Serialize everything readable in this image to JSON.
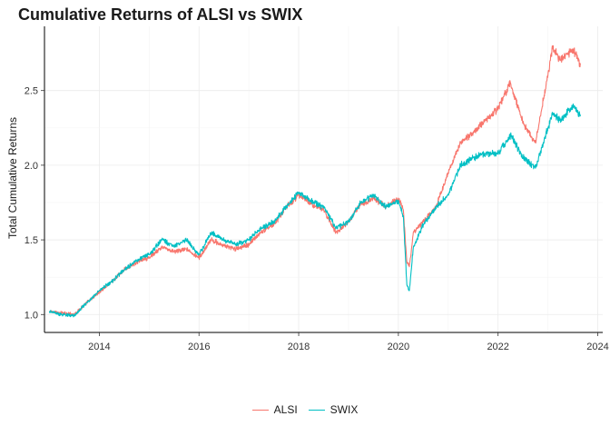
{
  "chart_data": {
    "type": "line",
    "title": "Cumulative Returns of ALSI vs SWIX",
    "xlabel": "",
    "ylabel": "Total Cumulative Returns",
    "xlim": [
      2012.9,
      2024.1
    ],
    "ylim": [
      0.88,
      2.93
    ],
    "x_ticks": [
      2014,
      2016,
      2018,
      2020,
      2022,
      2024
    ],
    "x_tick_labels": [
      "2014",
      "2016",
      "2018",
      "2020",
      "2022",
      "2024"
    ],
    "y_ticks": [
      1.0,
      1.5,
      2.0,
      2.5
    ],
    "y_tick_labels": [
      "1.0",
      "1.5",
      "2.0",
      "2.5"
    ],
    "grid": true,
    "legend_position": "bottom",
    "series": [
      {
        "name": "ALSI",
        "color": "#F8766D",
        "x": [
          2013.0,
          2013.25,
          2013.5,
          2013.75,
          2014.0,
          2014.25,
          2014.5,
          2014.75,
          2015.0,
          2015.25,
          2015.5,
          2015.75,
          2016.0,
          2016.25,
          2016.5,
          2016.75,
          2017.0,
          2017.25,
          2017.5,
          2017.75,
          2018.0,
          2018.25,
          2018.5,
          2018.75,
          2019.0,
          2019.25,
          2019.5,
          2019.75,
          2020.0,
          2020.1,
          2020.17,
          2020.22,
          2020.3,
          2020.5,
          2020.75,
          2021.0,
          2021.25,
          2021.5,
          2021.75,
          2022.0,
          2022.25,
          2022.5,
          2022.75,
          2023.0,
          2023.1,
          2023.25,
          2023.5,
          2023.65
        ],
        "values": [
          1.02,
          1.01,
          1.0,
          1.08,
          1.15,
          1.22,
          1.3,
          1.35,
          1.38,
          1.45,
          1.42,
          1.44,
          1.38,
          1.5,
          1.46,
          1.44,
          1.47,
          1.55,
          1.6,
          1.72,
          1.8,
          1.74,
          1.7,
          1.55,
          1.62,
          1.74,
          1.78,
          1.72,
          1.78,
          1.7,
          1.35,
          1.32,
          1.55,
          1.62,
          1.72,
          1.95,
          2.15,
          2.22,
          2.3,
          2.38,
          2.55,
          2.28,
          2.15,
          2.6,
          2.8,
          2.7,
          2.78,
          2.68
        ]
      },
      {
        "name": "SWIX",
        "color": "#00BFC4",
        "x": [
          2013.0,
          2013.25,
          2013.5,
          2013.75,
          2014.0,
          2014.25,
          2014.5,
          2014.75,
          2015.0,
          2015.25,
          2015.5,
          2015.75,
          2016.0,
          2016.25,
          2016.5,
          2016.75,
          2017.0,
          2017.25,
          2017.5,
          2017.75,
          2018.0,
          2018.25,
          2018.5,
          2018.75,
          2019.0,
          2019.25,
          2019.5,
          2019.75,
          2020.0,
          2020.1,
          2020.17,
          2020.22,
          2020.3,
          2020.5,
          2020.75,
          2021.0,
          2021.25,
          2021.5,
          2021.75,
          2022.0,
          2022.25,
          2022.5,
          2022.75,
          2023.0,
          2023.1,
          2023.25,
          2023.5,
          2023.65
        ],
        "values": [
          1.02,
          1.0,
          0.99,
          1.08,
          1.16,
          1.22,
          1.3,
          1.36,
          1.4,
          1.5,
          1.46,
          1.5,
          1.4,
          1.55,
          1.5,
          1.47,
          1.5,
          1.58,
          1.62,
          1.72,
          1.82,
          1.76,
          1.72,
          1.58,
          1.62,
          1.75,
          1.8,
          1.72,
          1.76,
          1.66,
          1.2,
          1.16,
          1.45,
          1.6,
          1.72,
          1.8,
          2.0,
          2.05,
          2.08,
          2.08,
          2.2,
          2.05,
          1.98,
          2.25,
          2.35,
          2.3,
          2.4,
          2.33
        ]
      }
    ]
  }
}
